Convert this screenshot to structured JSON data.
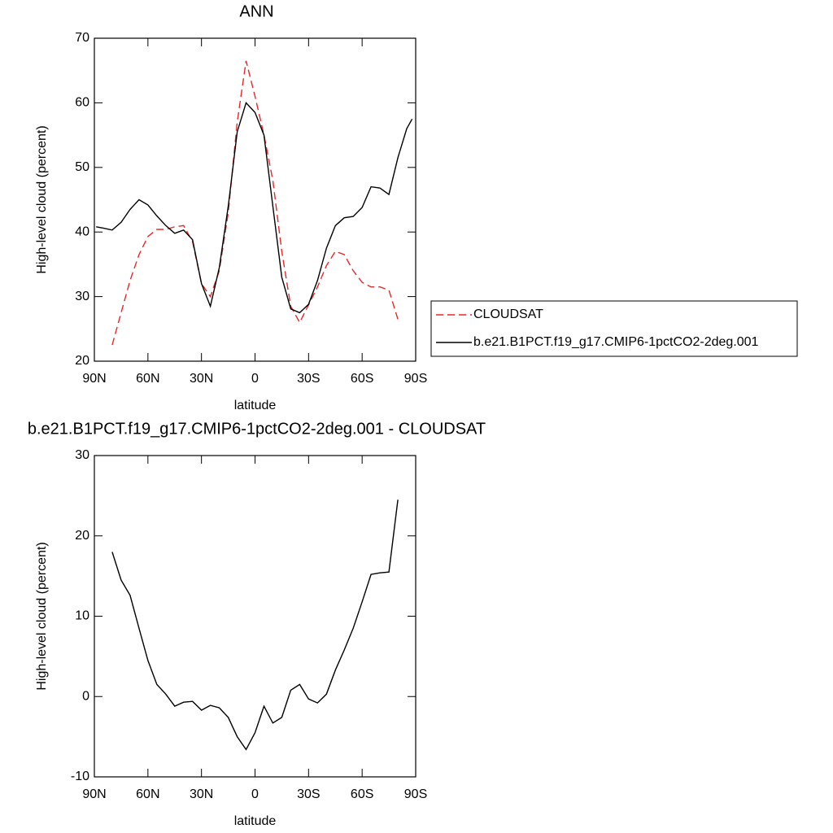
{
  "chart_data": [
    {
      "type": "line",
      "title": "ANN",
      "x_label": "latitude",
      "y_label": "High-level cloud (percent)",
      "x": [
        89,
        85,
        80,
        75,
        70,
        65,
        60,
        55,
        50,
        45,
        40,
        35,
        30,
        25,
        20,
        15,
        10,
        5,
        0,
        -5,
        -10,
        -15,
        -20,
        -25,
        -30,
        -35,
        -40,
        -45,
        -50,
        -55,
        -60,
        -65,
        -70,
        -75,
        -80,
        -85,
        -88
      ],
      "series": [
        {
          "name": "CLOUDSAT",
          "color": "#e8262a",
          "dash": true,
          "values": [
            null,
            null,
            22.5,
            27.5,
            32.5,
            36.5,
            39.3,
            40.4,
            40.4,
            40.8,
            41.0,
            38.5,
            32.0,
            30.0,
            34.0,
            43.0,
            57.0,
            66.5,
            61.0,
            55.0,
            48.0,
            37.0,
            28.5,
            26.0,
            28.7,
            31.5,
            34.8,
            37.0,
            36.5,
            34.0,
            32.2,
            31.5,
            31.5,
            31.0,
            26.5,
            null,
            null
          ]
        },
        {
          "name": "b.e21.B1PCT.f19_g17.CMIP6-1pctCO2-2deg.001",
          "color": "#000000",
          "dash": false,
          "values": [
            40.8,
            40.6,
            40.3,
            41.5,
            43.5,
            45.0,
            44.2,
            42.5,
            41.0,
            39.8,
            40.3,
            38.8,
            32.0,
            28.5,
            34.5,
            44.0,
            55.5,
            60.0,
            58.5,
            55.0,
            44.0,
            33.0,
            28.1,
            27.5,
            28.8,
            32.5,
            37.5,
            41.0,
            42.2,
            42.4,
            43.8,
            47.0,
            46.8,
            45.8,
            51.5,
            56.0,
            57.5
          ]
        }
      ],
      "xlim": [
        90,
        -90
      ],
      "xticks": [
        {
          "value": 90,
          "label": "90N"
        },
        {
          "value": 60,
          "label": "60N"
        },
        {
          "value": 30,
          "label": "30N"
        },
        0,
        {
          "value": -30,
          "label": "30S"
        },
        {
          "value": -60,
          "label": "60S"
        },
        {
          "value": -90,
          "label": "90S"
        }
      ],
      "ylim": [
        20,
        70
      ],
      "yticks": [
        20,
        30,
        40,
        50,
        60,
        70
      ],
      "legend": "right"
    },
    {
      "type": "line",
      "title": "b.e21.B1PCT.f19_g17.CMIP6-1pctCO2-2deg.001 - CLOUDSAT",
      "x_label": "latitude",
      "y_label": "High-level cloud (percent)",
      "x": [
        89,
        85,
        80,
        75,
        70,
        65,
        60,
        55,
        50,
        45,
        40,
        35,
        30,
        25,
        20,
        15,
        10,
        5,
        0,
        -5,
        -10,
        -15,
        -20,
        -25,
        -30,
        -35,
        -40,
        -45,
        -50,
        -55,
        -60,
        -65,
        -70,
        -75,
        -80,
        -85,
        -88
      ],
      "series": [
        {
          "color": "#000000",
          "dash": false,
          "values": [
            null,
            null,
            18.0,
            14.5,
            12.6,
            8.5,
            4.5,
            1.5,
            0.3,
            -1.2,
            -0.7,
            -0.6,
            -1.7,
            -1.1,
            -1.4,
            -2.6,
            -5.0,
            -6.6,
            -4.5,
            -1.2,
            -3.3,
            -2.6,
            0.8,
            1.5,
            -0.3,
            -0.8,
            0.3,
            3.3,
            5.8,
            8.5,
            11.8,
            15.2,
            15.4,
            15.5,
            24.5,
            null,
            null
          ]
        }
      ],
      "xlim": [
        90,
        -90
      ],
      "xticks": [
        {
          "value": 90,
          "label": "90N"
        },
        {
          "value": 60,
          "label": "60N"
        },
        {
          "value": 30,
          "label": "30N"
        },
        0,
        {
          "value": -30,
          "label": "30S"
        },
        {
          "value": -60,
          "label": "60S"
        },
        {
          "value": -90,
          "label": "90S"
        }
      ],
      "ylim": [
        -10,
        30
      ],
      "yticks": [
        -10,
        0,
        10,
        20,
        30
      ]
    }
  ]
}
